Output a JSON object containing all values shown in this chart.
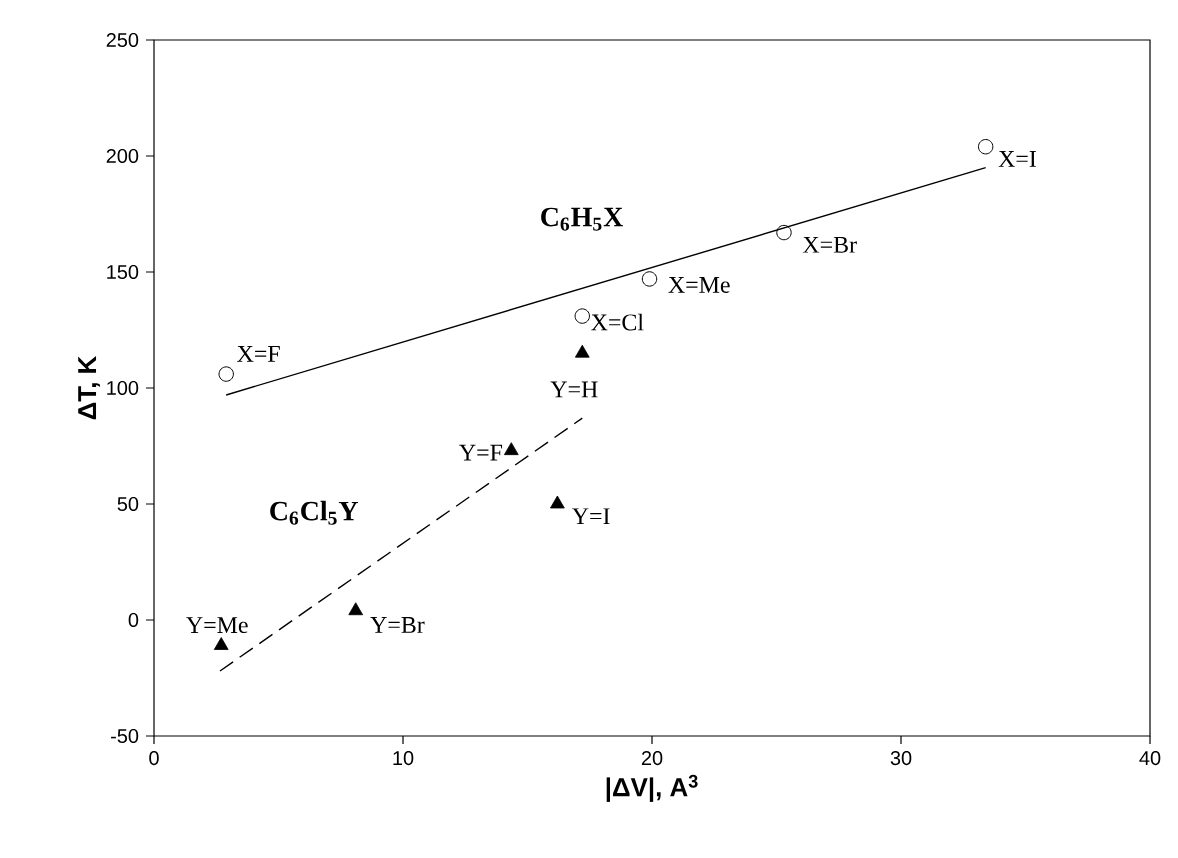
{
  "chart_data": {
    "type": "scatter",
    "xlabel": "|ΔV|, A$^{3}$",
    "ylabel": "ΔT, K",
    "xlim": [
      0,
      40
    ],
    "ylim": [
      -50,
      250
    ],
    "xticks": [
      0,
      10,
      20,
      30,
      40
    ],
    "yticks": [
      -50,
      0,
      50,
      100,
      150,
      200,
      250
    ],
    "grid": false,
    "series": [
      {
        "name": "C$_{6}$H$_{5}$X",
        "marker": "circle",
        "color": "#000000",
        "x": [
          2.9,
          17.2,
          19.9,
          25.3,
          33.4
        ],
        "values": [
          106,
          131,
          147,
          167,
          204
        ]
      },
      {
        "name": "C$_{6}$Cl$_{5}$Y",
        "marker": "triangle",
        "color": "#000000",
        "x": [
          2.7,
          8.1,
          14.35,
          16.2,
          17.2
        ],
        "values": [
          -11,
          4,
          73,
          50,
          115
        ]
      },
      {
        "type": "line",
        "marker": "none",
        "line_style": "solid",
        "color": "#000000",
        "x": [
          2.9,
          33.4
        ],
        "values": [
          97,
          195
        ]
      },
      {
        "type": "line",
        "marker": "none",
        "line_style": "dashed",
        "color": "#000000",
        "x": [
          2.65,
          17.2
        ],
        "values": [
          -22,
          87
        ]
      }
    ],
    "annotations": [
      {
        "text": "X=F",
        "x": 2.9,
        "y": 106
      },
      {
        "text": "X=Cl",
        "x": 17.2,
        "y": 131
      },
      {
        "text": "X=Me",
        "x": 19.9,
        "y": 147
      },
      {
        "text": "X=Br",
        "x": 25.3,
        "y": 167
      },
      {
        "text": "X=I",
        "x": 33.4,
        "y": 204
      },
      {
        "text": "Y=Me",
        "x": 2.7,
        "y": -11
      },
      {
        "text": "Y=Br",
        "x": 8.1,
        "y": 4
      },
      {
        "text": "Y=F",
        "x": 14.35,
        "y": 73
      },
      {
        "text": "Y=I",
        "x": 16.2,
        "y": 50
      },
      {
        "text": "Y=H",
        "x": 17.2,
        "y": 115
      }
    ]
  }
}
